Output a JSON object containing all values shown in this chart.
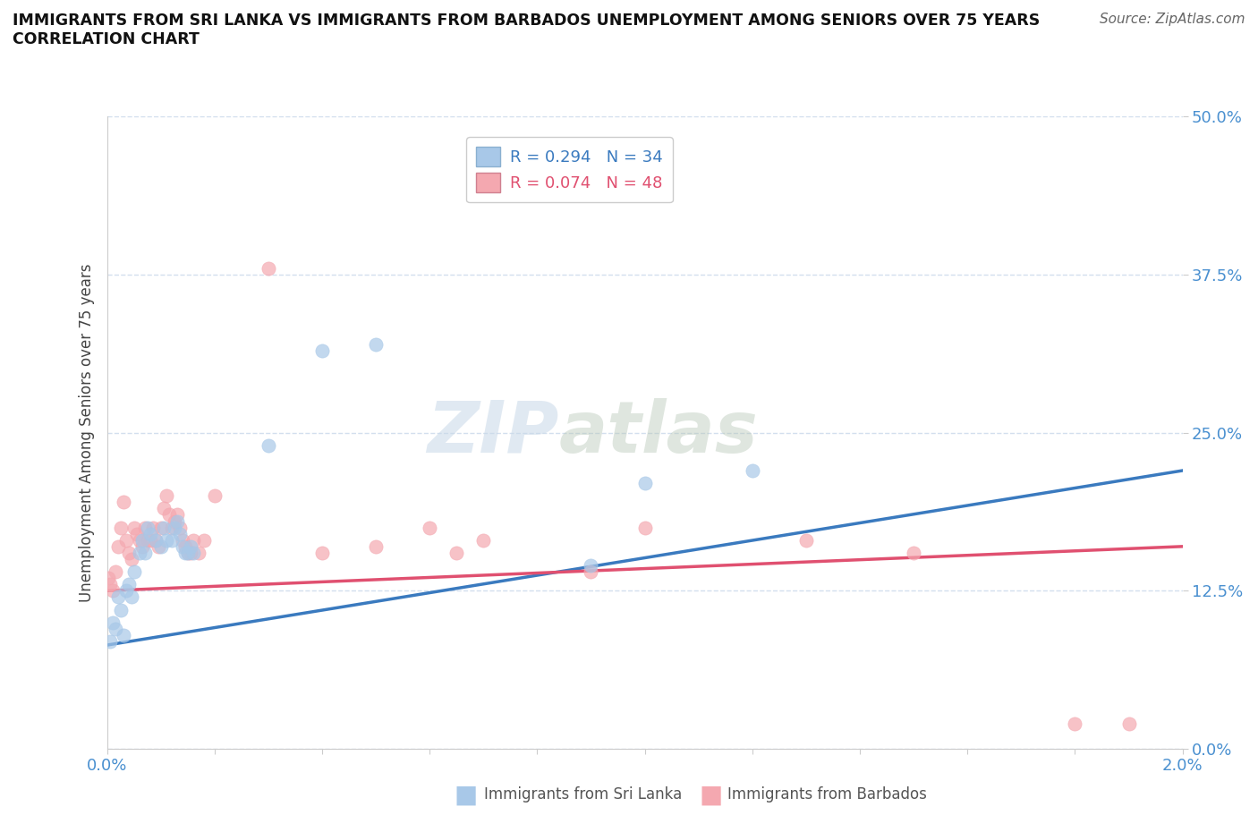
{
  "title_line1": "IMMIGRANTS FROM SRI LANKA VS IMMIGRANTS FROM BARBADOS UNEMPLOYMENT AMONG SENIORS OVER 75 YEARS",
  "title_line2": "CORRELATION CHART",
  "source_text": "Source: ZipAtlas.com",
  "ylabel": "Unemployment Among Seniors over 75 years",
  "xlim": [
    0.0,
    0.02
  ],
  "ylim": [
    0.0,
    0.5
  ],
  "yticks": [
    0.0,
    0.125,
    0.25,
    0.375,
    0.5
  ],
  "ytick_labels": [
    "0.0%",
    "12.5%",
    "25.0%",
    "37.5%",
    "50.0%"
  ],
  "watermark_part1": "ZIP",
  "watermark_part2": "atlas",
  "sri_lanka_R": 0.294,
  "sri_lanka_N": 34,
  "barbados_R": 0.074,
  "barbados_N": 48,
  "sri_lanka_color": "#a8c8e8",
  "barbados_color": "#f4a8b0",
  "line_sl_color": "#3a7abf",
  "line_bb_color": "#e05070",
  "sri_lanka_x": [
    5e-05,
    0.0001,
    0.00015,
    0.0002,
    0.00025,
    0.0003,
    0.00035,
    0.0004,
    0.00045,
    0.0005,
    0.0006,
    0.00065,
    0.0007,
    0.00075,
    0.0008,
    0.0009,
    0.001,
    0.00105,
    0.0011,
    0.0012,
    0.00125,
    0.0013,
    0.00135,
    0.0014,
    0.00145,
    0.0015,
    0.00155,
    0.0016,
    0.003,
    0.004,
    0.005,
    0.009,
    0.01,
    0.012
  ],
  "sri_lanka_y": [
    0.085,
    0.1,
    0.095,
    0.12,
    0.11,
    0.09,
    0.125,
    0.13,
    0.12,
    0.14,
    0.155,
    0.165,
    0.155,
    0.175,
    0.17,
    0.165,
    0.16,
    0.175,
    0.165,
    0.165,
    0.175,
    0.18,
    0.17,
    0.16,
    0.155,
    0.155,
    0.16,
    0.155,
    0.24,
    0.315,
    0.32,
    0.145,
    0.21,
    0.22
  ],
  "barbados_x": [
    3e-05,
    6e-05,
    0.0001,
    0.00015,
    0.0002,
    0.00025,
    0.0003,
    0.00035,
    0.0004,
    0.00045,
    0.0005,
    0.00055,
    0.0006,
    0.00065,
    0.0007,
    0.00075,
    0.0008,
    0.00085,
    0.0009,
    0.00095,
    0.001,
    0.00105,
    0.0011,
    0.00115,
    0.0012,
    0.00125,
    0.0013,
    0.00135,
    0.0014,
    0.00145,
    0.0015,
    0.00155,
    0.0016,
    0.0017,
    0.0018,
    0.002,
    0.003,
    0.004,
    0.005,
    0.006,
    0.0065,
    0.007,
    0.009,
    0.01,
    0.013,
    0.015,
    0.018,
    0.019
  ],
  "barbados_y": [
    0.135,
    0.13,
    0.125,
    0.14,
    0.16,
    0.175,
    0.195,
    0.165,
    0.155,
    0.15,
    0.175,
    0.17,
    0.165,
    0.16,
    0.175,
    0.165,
    0.165,
    0.175,
    0.165,
    0.16,
    0.175,
    0.19,
    0.2,
    0.185,
    0.175,
    0.18,
    0.185,
    0.175,
    0.165,
    0.16,
    0.155,
    0.155,
    0.165,
    0.155,
    0.165,
    0.2,
    0.38,
    0.155,
    0.16,
    0.175,
    0.155,
    0.165,
    0.14,
    0.175,
    0.165,
    0.155,
    0.02,
    0.02
  ],
  "sl_line_x0": 0.0,
  "sl_line_y0": 0.082,
  "sl_line_x1": 0.02,
  "sl_line_y1": 0.22,
  "bb_line_x0": 0.0,
  "bb_line_y0": 0.125,
  "bb_line_x1": 0.02,
  "bb_line_y1": 0.16
}
